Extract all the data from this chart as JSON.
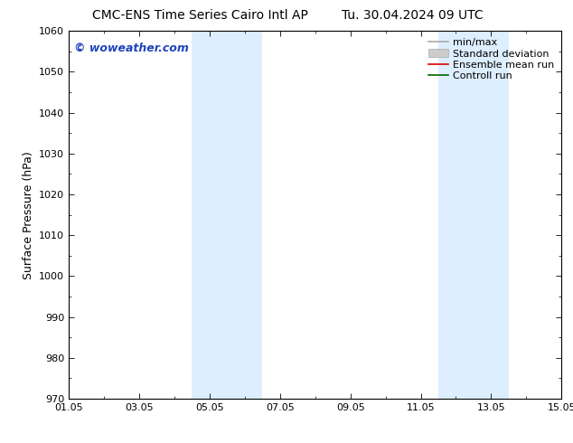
{
  "title_left": "CMC-ENS Time Series Cairo Intl AP",
  "title_right": "Tu. 30.04.2024 09 UTC",
  "ylabel": "Surface Pressure (hPa)",
  "ylim": [
    970,
    1060
  ],
  "yticks": [
    970,
    980,
    990,
    1000,
    1010,
    1020,
    1030,
    1040,
    1050,
    1060
  ],
  "xlim": [
    0,
    14
  ],
  "xtick_labels": [
    "01.05",
    "03.05",
    "05.05",
    "07.05",
    "09.05",
    "11.05",
    "13.05",
    "15.05"
  ],
  "xtick_positions": [
    0,
    2,
    4,
    6,
    8,
    10,
    12,
    14
  ],
  "shaded_regions": [
    {
      "xstart": 3.5,
      "xend": 4.5,
      "color": "#ddeeff"
    },
    {
      "xstart": 4.5,
      "xend": 5.5,
      "color": "#ddeeff"
    },
    {
      "xstart": 10.5,
      "xend": 11.5,
      "color": "#ddeeff"
    },
    {
      "xstart": 11.5,
      "xend": 12.5,
      "color": "#ddeeff"
    }
  ],
  "watermark": "© woweather.com",
  "watermark_color": "#2244bb",
  "background_color": "#ffffff",
  "legend_entries": [
    {
      "label": "min/max",
      "color": "#aaaaaa",
      "lw": 1.2
    },
    {
      "label": "Standard deviation",
      "color": "#cccccc",
      "lw": 5
    },
    {
      "label": "Ensemble mean run",
      "color": "#dd0000",
      "lw": 1.2
    },
    {
      "label": "Controll run",
      "color": "#006600",
      "lw": 1.2
    }
  ],
  "title_fontsize": 10,
  "axis_label_fontsize": 9,
  "tick_fontsize": 8,
  "watermark_fontsize": 9,
  "legend_fontsize": 8,
  "spine_color": "#000000"
}
